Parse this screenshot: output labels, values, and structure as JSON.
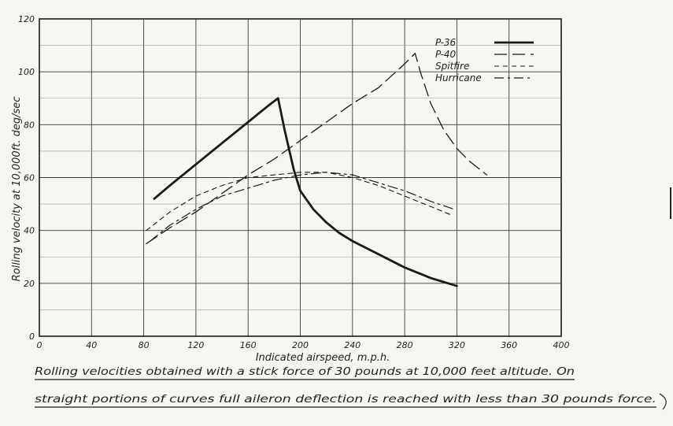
{
  "chart_data": {
    "type": "line",
    "title": "",
    "xlabel": "Indicated airspeed, m.p.h.",
    "ylabel": "Rolling velocity at 10,000ft. deg/sec",
    "xlim": [
      0,
      400
    ],
    "ylim": [
      0,
      120
    ],
    "x_ticks": [
      "0",
      "40",
      "80",
      "120",
      "160",
      "200",
      "240",
      "280",
      "320",
      "360",
      "400"
    ],
    "y_ticks": [
      "0",
      "20",
      "40",
      "60",
      "80",
      "100",
      "120"
    ],
    "grid": true,
    "legend_position": "top-right",
    "series": [
      {
        "name": "P-36",
        "style": "solid-thick",
        "color": "#1a1a1a",
        "x": [
          88,
          100,
          120,
          140,
          160,
          175,
          183,
          188,
          195,
          200,
          210,
          220,
          230,
          240,
          260,
          280,
          300,
          320
        ],
        "y": [
          52,
          57,
          65,
          73,
          81,
          87,
          90,
          78,
          63,
          55,
          48,
          43,
          39,
          36,
          31,
          26,
          22,
          19
        ]
      },
      {
        "name": "P-40",
        "style": "long-dash",
        "color": "#1a1a1a",
        "x": [
          82,
          100,
          120,
          140,
          160,
          180,
          200,
          220,
          240,
          260,
          280,
          288,
          292,
          300,
          310,
          320,
          330,
          343
        ],
        "y": [
          35,
          41,
          47,
          54,
          61,
          67,
          74,
          81,
          88,
          94,
          103,
          107,
          100,
          88,
          78,
          71,
          66,
          61
        ]
      },
      {
        "name": "Spitfire",
        "style": "short-dash",
        "color": "#1a1a1a",
        "x": [
          82,
          100,
          120,
          140,
          160,
          180,
          200,
          220,
          240,
          260,
          280,
          300,
          315
        ],
        "y": [
          40,
          47,
          53,
          57,
          60,
          61,
          62,
          62,
          60,
          57,
          53,
          49,
          46
        ]
      },
      {
        "name": "Hurricane",
        "style": "dash-dot",
        "color": "#1a1a1a",
        "x": [
          85,
          100,
          120,
          140,
          160,
          180,
          200,
          220,
          240,
          260,
          280,
          300,
          318
        ],
        "y": [
          36,
          42,
          48,
          53,
          56,
          59,
          61,
          62,
          61,
          58,
          55,
          51,
          48
        ]
      }
    ]
  },
  "caption": {
    "line1": "Rolling velocities obtained with a stick force of 30 pounds at 10,000 feet altitude. On",
    "line2": "straight portions of curves full aileron deflection is reached with less than 30 pounds force."
  }
}
